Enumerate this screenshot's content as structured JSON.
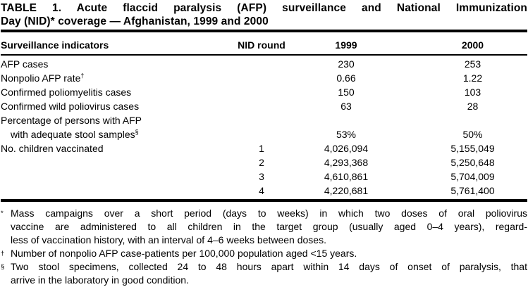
{
  "title": {
    "line1": "TABLE 1. Acute flaccid paralysis (AFP) surveillance and National Immunization",
    "line2": "Day (NID)* coverage — Afghanistan, 1999 and 2000"
  },
  "table": {
    "columns": {
      "indicator": "Surveillance indicators",
      "round": "NID round",
      "y1999": "1999",
      "y2000": "2000"
    },
    "rows": [
      {
        "indicator": "AFP cases",
        "round": "",
        "v1999": "230",
        "v2000": "253"
      },
      {
        "indicator": "Nonpolio AFP rate",
        "marker": "†",
        "round": "",
        "v1999": "0.66",
        "v2000": "1.22"
      },
      {
        "indicator": "Confirmed poliomyelitis cases",
        "round": "",
        "v1999": "150",
        "v2000": "103"
      },
      {
        "indicator": "Confirmed wild poliovirus cases",
        "round": "",
        "v1999": "63",
        "v2000": "28"
      },
      {
        "indicator": "Percentage of persons with AFP",
        "round": "",
        "v1999": "",
        "v2000": ""
      },
      {
        "indicator": "with adequate stool samples",
        "marker": "§",
        "round": "",
        "v1999": "53%",
        "v2000": "50%"
      },
      {
        "indicator": "No. children vaccinated",
        "round": "1",
        "v1999": "4,026,094",
        "v2000": "5,155,049"
      },
      {
        "indicator": "",
        "round": "2",
        "v1999": "4,293,368",
        "v2000": "5,250,648"
      },
      {
        "indicator": "",
        "round": "3",
        "v1999": "4,610,861",
        "v2000": "5,704,009"
      },
      {
        "indicator": "",
        "round": "4",
        "v1999": "4,220,681",
        "v2000": "5,761,400"
      }
    ]
  },
  "footnotes": [
    {
      "marker": "*",
      "lines": [
        "Mass campaigns over a short period (days to weeks) in which two doses of oral poliovirus",
        "vaccine are administered to all children in the target group (usually aged 0–4 years), regard-",
        "less of vaccination history, with an interval of 4–6 weeks between doses."
      ]
    },
    {
      "marker": "†",
      "lines": [
        "Number of nonpolio AFP case-patients per 100,000 population aged <15 years."
      ]
    },
    {
      "marker": "§",
      "lines": [
        "Two stool specimens, collected 24 to 48 hours apart within 14 days of onset of paralysis, that",
        "arrive in the laboratory in good condition."
      ]
    }
  ]
}
